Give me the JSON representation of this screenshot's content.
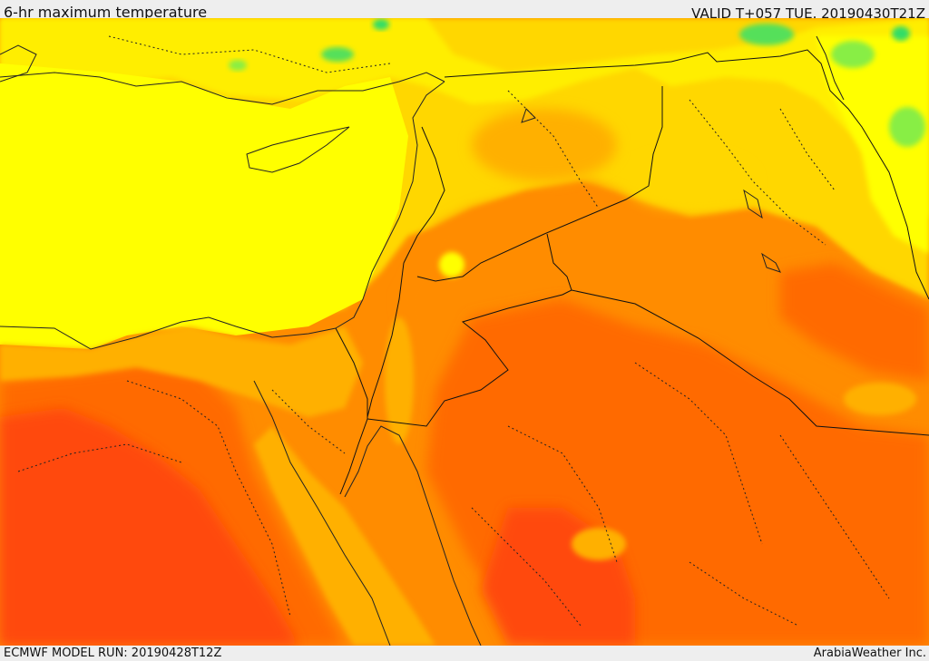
{
  "map": {
    "title": "6-hr maximum temperature",
    "valid_time": "VALID T+057 TUE. 20190430T21Z",
    "model_run": "ECMWF MODEL RUN: 20190428T12Z",
    "credit": "ArabiaWeather Inc."
  },
  "colors": {
    "cool_green": "#33dd66",
    "light_green": "#88ee44",
    "yellow": "#ffff00",
    "light_orange": "#ffd700",
    "orange": "#ffb000",
    "dark_orange": "#ff8c00",
    "red_orange": "#ff6a00",
    "red": "#ff4a10"
  }
}
